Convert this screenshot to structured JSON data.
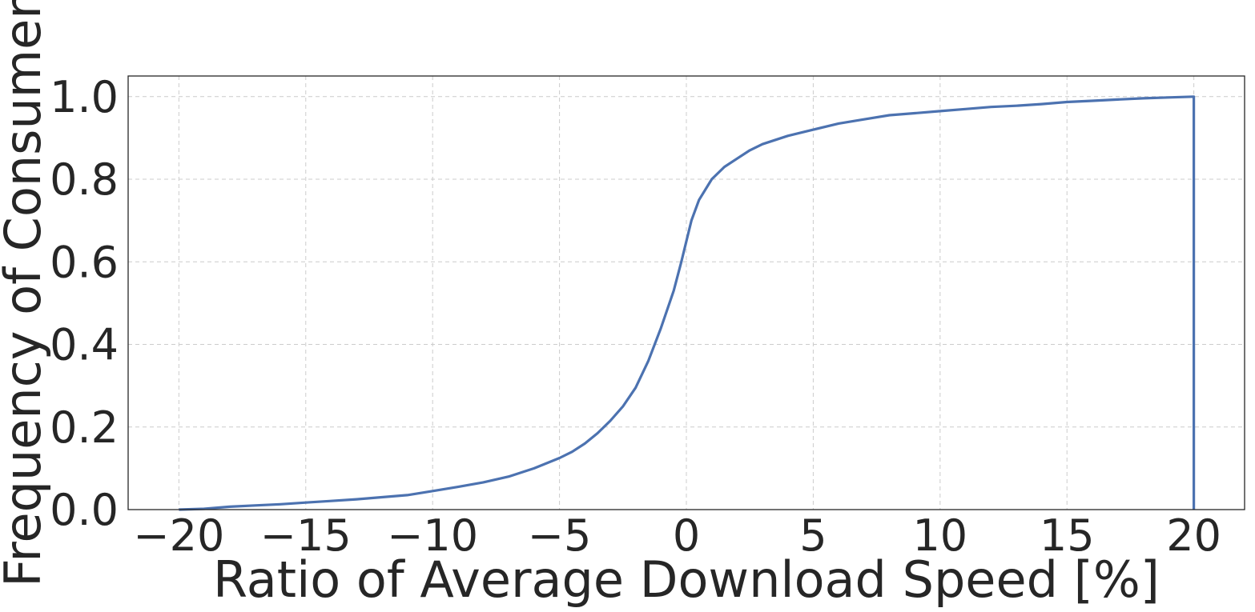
{
  "chart_data": {
    "type": "line",
    "title": "",
    "xlabel": "Ratio of Average Download Speed [%]",
    "ylabel": "Frequency of Consumer",
    "xlim": [
      -22,
      22
    ],
    "ylim": [
      0,
      1.05
    ],
    "x_ticks": [
      -20,
      -15,
      -10,
      -5,
      0,
      5,
      10,
      15,
      20
    ],
    "x_tick_labels": [
      "−20",
      "−15",
      "−10",
      "−5",
      "0",
      "5",
      "10",
      "15",
      "20"
    ],
    "y_ticks": [
      0.0,
      0.2,
      0.4,
      0.6,
      0.8,
      1.0
    ],
    "y_tick_labels": [
      "0.0",
      "0.2",
      "0.4",
      "0.6",
      "0.8",
      "1.0"
    ],
    "grid": true,
    "legend": "none",
    "series": [
      {
        "color": "#4c72b0",
        "x": [
          -20,
          -19,
          -18,
          -17,
          -16,
          -15,
          -14,
          -13,
          -12,
          -11,
          -10,
          -9,
          -8,
          -7,
          -6,
          -5,
          -4.5,
          -4,
          -3.5,
          -3,
          -2.5,
          -2,
          -1.5,
          -1,
          -0.5,
          -0.2,
          0,
          0.2,
          0.5,
          1,
          1.5,
          2,
          2.5,
          3,
          4,
          5,
          6,
          7,
          8,
          9,
          10,
          11,
          12,
          13,
          14,
          15,
          16,
          17,
          18,
          19,
          20,
          20
        ],
        "y": [
          0.0,
          0.002,
          0.007,
          0.01,
          0.013,
          0.017,
          0.021,
          0.025,
          0.03,
          0.035,
          0.045,
          0.055,
          0.066,
          0.08,
          0.1,
          0.125,
          0.14,
          0.16,
          0.185,
          0.215,
          0.25,
          0.295,
          0.36,
          0.44,
          0.53,
          0.6,
          0.65,
          0.7,
          0.75,
          0.8,
          0.83,
          0.85,
          0.87,
          0.885,
          0.905,
          0.92,
          0.935,
          0.945,
          0.955,
          0.96,
          0.965,
          0.97,
          0.975,
          0.978,
          0.982,
          0.987,
          0.99,
          0.993,
          0.996,
          0.998,
          1.0,
          0.0
        ]
      }
    ]
  }
}
